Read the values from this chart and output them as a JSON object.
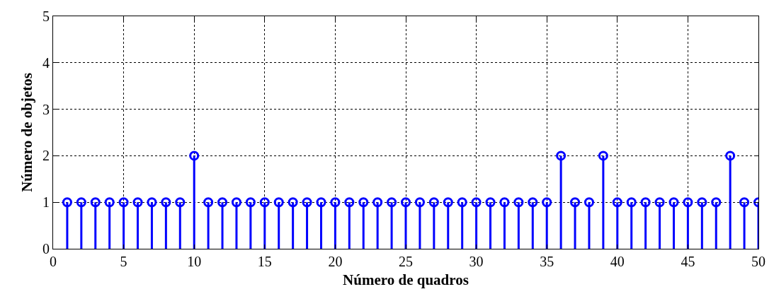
{
  "chart_data": {
    "type": "lollipop",
    "xlabel": "Número de quadros",
    "ylabel": "Número de objetos",
    "x": [
      1,
      2,
      3,
      4,
      5,
      6,
      7,
      8,
      9,
      10,
      11,
      12,
      13,
      14,
      15,
      16,
      17,
      18,
      19,
      20,
      21,
      22,
      23,
      24,
      25,
      26,
      27,
      28,
      29,
      30,
      31,
      32,
      33,
      34,
      35,
      36,
      37,
      38,
      39,
      40,
      41,
      42,
      43,
      44,
      45,
      46,
      47,
      48,
      49,
      50
    ],
    "series": [
      {
        "color": "#0000ff",
        "values": [
          1,
          1,
          1,
          1,
          1,
          1,
          1,
          1,
          1,
          2,
          1,
          1,
          1,
          1,
          1,
          1,
          1,
          1,
          1,
          1,
          1,
          1,
          1,
          1,
          1,
          1,
          1,
          1,
          1,
          1,
          1,
          1,
          1,
          1,
          1,
          2,
          1,
          1,
          2,
          1,
          1,
          1,
          1,
          1,
          1,
          1,
          1,
          2,
          1,
          1
        ]
      }
    ],
    "xlim": [
      0,
      50
    ],
    "xticks": [
      0,
      5,
      10,
      15,
      20,
      25,
      30,
      35,
      40,
      45,
      50
    ],
    "ylim": [
      0,
      5
    ],
    "yticks": [
      0,
      1,
      2,
      3,
      4,
      5
    ],
    "grid": true,
    "marker": "circle"
  }
}
